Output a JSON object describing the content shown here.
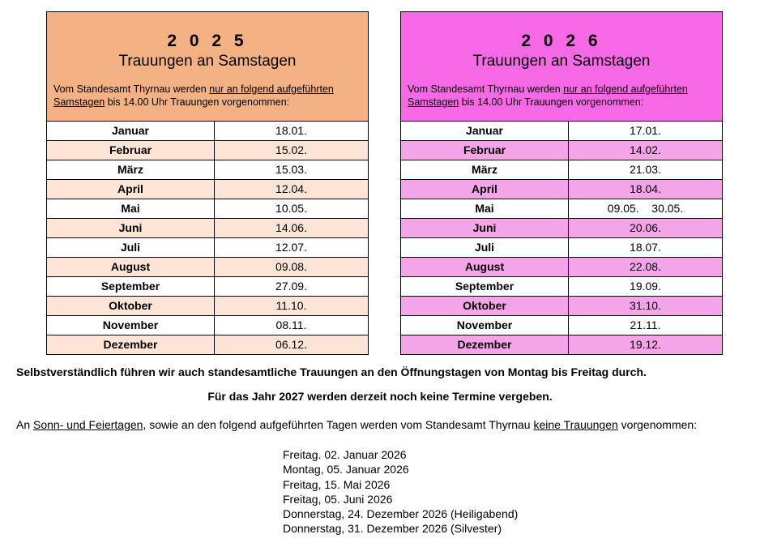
{
  "panel_2025": {
    "year": "2 0 2 5",
    "subtitle": "Trauungen an Samstagen",
    "intro_a": "Vom Standesamt Thyrnau werden ",
    "intro_u1": "nur an folgend aufgeführten",
    "intro_u2": "Samstagen",
    "intro_b": " bis 14.00 Uhr Trauungen vorgenommen:",
    "rows": [
      {
        "month": "Januar",
        "date": "18.01."
      },
      {
        "month": "Februar",
        "date": "15.02."
      },
      {
        "month": "März",
        "date": "15.03."
      },
      {
        "month": "April",
        "date": "12.04."
      },
      {
        "month": "Mai",
        "date": "10.05."
      },
      {
        "month": "Juni",
        "date": "14.06."
      },
      {
        "month": "Juli",
        "date": "12.07."
      },
      {
        "month": "August",
        "date": "09.08."
      },
      {
        "month": "September",
        "date": "27.09."
      },
      {
        "month": "Oktober",
        "date": "11.10."
      },
      {
        "month": "November",
        "date": "08.11."
      },
      {
        "month": "Dezember",
        "date": "06.12."
      }
    ]
  },
  "panel_2026": {
    "year": "2 0 2 6",
    "subtitle": "Trauungen an Samstagen",
    "intro_a": "Vom Standesamt Thyrnau werden ",
    "intro_u1": "nur an folgend aufgeführten",
    "intro_u2": "Samstagen",
    "intro_b": " bis 14.00 Uhr Trauungen vorgenommen:",
    "rows": [
      {
        "month": "Januar",
        "date": "17.01."
      },
      {
        "month": "Februar",
        "date": "14.02."
      },
      {
        "month": "März",
        "date": "21.03."
      },
      {
        "month": "April",
        "date": "18.04."
      },
      {
        "month": "Mai",
        "date": "09.05.    30.05."
      },
      {
        "month": "Juni",
        "date": "20.06."
      },
      {
        "month": "Juli",
        "date": "18.07."
      },
      {
        "month": "August",
        "date": "22.08."
      },
      {
        "month": "September",
        "date": "19.09."
      },
      {
        "month": "Oktober",
        "date": "31.10."
      },
      {
        "month": "November",
        "date": "21.11."
      },
      {
        "month": "Dezember",
        "date": "19.12."
      }
    ]
  },
  "notes": {
    "weekdays": "Selbstverständlich führen wir auch standesamtliche Trauungen an den Öffnungstagen von Montag bis Freitag durch.",
    "year2027": "Für das Jahr 2027 werden derzeit noch keine Termine vergeben."
  },
  "exceptions": {
    "part1": "An ",
    "u1": "Sonn- und Feiertagen",
    "part2": ", sowie an den folgend aufgeführten Tagen werden vom Standesamt Thyrnau ",
    "u2": "keine Trauungen",
    "part3": " vorgenommen:",
    "days": [
      "Freitag. 02. Januar 2026",
      "Montag, 05. Januar 2026",
      "Freitag, 15. Mai 2026",
      "Freitag, 05. Juni 2026",
      "Donnerstag, 24. Dezember 2026 (Heiligabend)",
      "Donnerstag, 31. Dezember 2026 (Silvester)"
    ]
  },
  "colors": {
    "header_2025": "#f4b183",
    "row_2025": "#fce4d6",
    "header_2026": "#f769e6",
    "row_2026": "#f4a4e8"
  }
}
